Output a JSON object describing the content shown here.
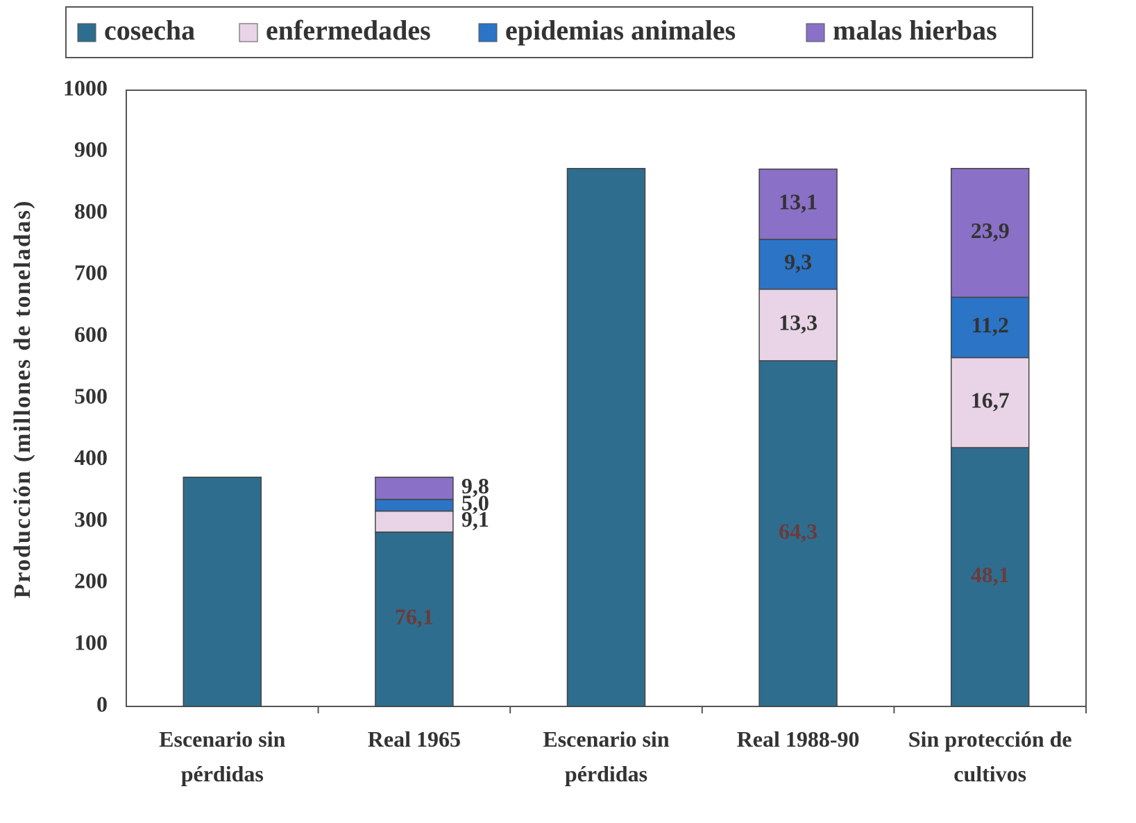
{
  "chart_data": {
    "type": "stacked_bar",
    "ylabel": "Producción (millones de toneladas)",
    "categories": [
      "Escenario sin pérdidas",
      "Real 1965",
      "Escenario sin pérdidas",
      "Real 1988-90",
      "Sin protección de cultivos"
    ],
    "series": [
      {
        "name": "cosecha",
        "color": "#2f6d8e",
        "values": [
          372,
          283,
          873,
          561,
          420
        ],
        "shares": [
          null,
          76.1,
          null,
          64.3,
          48.1
        ],
        "share_labels": [
          null,
          "76,1",
          null,
          "64,3",
          "48,1"
        ]
      },
      {
        "name": "enfermedades",
        "color": "#e8d4e6",
        "values": [
          null,
          34,
          null,
          116,
          146
        ],
        "shares": [
          null,
          9.1,
          null,
          13.3,
          16.7
        ],
        "share_labels": [
          null,
          "9,1",
          null,
          "13,3",
          "16,7"
        ]
      },
      {
        "name": "epidemias animales",
        "color": "#2b74c6",
        "values": [
          null,
          19,
          null,
          81,
          98
        ],
        "shares": [
          null,
          5.0,
          null,
          9.3,
          11.2
        ],
        "share_labels": [
          null,
          "5,0",
          null,
          "9,3",
          "11,2"
        ]
      },
      {
        "name": "malas hierbas",
        "color": "#8a70c6",
        "values": [
          null,
          36,
          null,
          114,
          209
        ],
        "shares": [
          null,
          9.8,
          null,
          13.1,
          23.9
        ],
        "share_labels": [
          null,
          "9,8",
          null,
          "13,1",
          "23,9"
        ]
      }
    ],
    "ylim": [
      0,
      1000
    ],
    "yticks": [
      0,
      100,
      200,
      300,
      400,
      500,
      600,
      700,
      800,
      900,
      1000
    ]
  }
}
